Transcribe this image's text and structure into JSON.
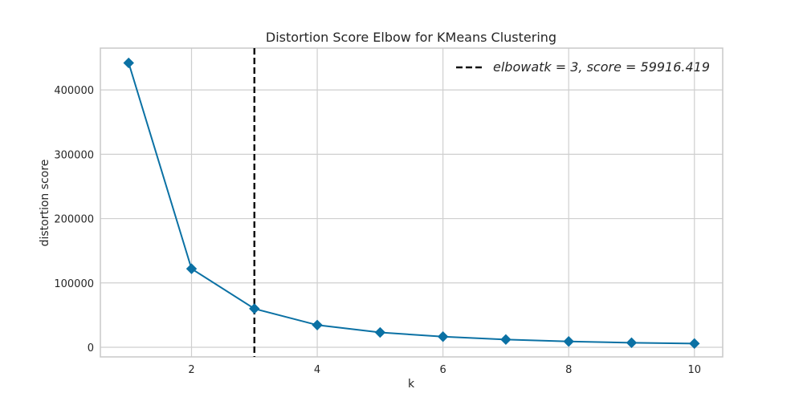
{
  "chart_data": {
    "type": "line",
    "title": "Distortion Score Elbow for KMeans Clustering",
    "xlabel": "k",
    "ylabel": "distortion score",
    "x": [
      1,
      2,
      3,
      4,
      5,
      6,
      7,
      8,
      9,
      10
    ],
    "series": [
      {
        "name": "",
        "values": [
          442000,
          122000,
          59916.419,
          34500,
          23000,
          16500,
          12000,
          9000,
          7000,
          5800
        ],
        "color": "#0b71a4",
        "marker": "diamond"
      }
    ],
    "xlim": [
      0.55,
      10.45
    ],
    "ylim": [
      -15000,
      465000
    ],
    "xticks": [
      2,
      4,
      6,
      8,
      10
    ],
    "yticks": [
      0,
      100000,
      200000,
      300000,
      400000
    ],
    "xtick_labels": [
      "2",
      "4",
      "6",
      "8",
      "10"
    ],
    "ytick_labels": [
      "0",
      "100000",
      "200000",
      "300000",
      "400000"
    ],
    "grid": true,
    "elbow": {
      "k": 3,
      "score": 59916.419,
      "line_style": "dashed",
      "color": "#111111",
      "legend_label": "elbow at k = 3, score = 59916.419",
      "legend_display": "elbowatk = 3, score = 59916.419"
    },
    "legend_position": "top-right",
    "colors": {
      "line": "#0b71a4",
      "grid": "#cfcfcf",
      "axes_border": "#c8c8c8",
      "text": "#262626",
      "background": "#ffffff"
    }
  }
}
